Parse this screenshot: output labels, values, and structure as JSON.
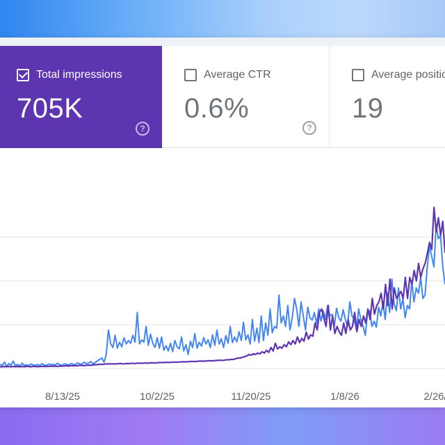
{
  "metrics": [
    {
      "label": "Total impressions",
      "value": "705K",
      "checked": true
    },
    {
      "label": "Average CTR",
      "value": "0.6%",
      "checked": false
    },
    {
      "label": "Average position",
      "value": "19",
      "checked": false
    }
  ],
  "help_glyph": "?",
  "colors": {
    "impressions": "#5e35b1",
    "clicks_line": "#4285f4",
    "grid": "#e0e0e0"
  },
  "chart_data": {
    "type": "line",
    "x_tick_labels": [
      "8/13/25",
      "10/2/25",
      "11/20/25",
      "1/8/26",
      "2/26/"
    ],
    "grid": true,
    "series": [
      {
        "color": "#4285f4",
        "values": [
          12,
          9,
          18,
          6,
          14,
          10,
          21,
          8,
          12,
          7,
          15,
          9,
          11,
          8,
          13,
          10,
          9,
          12,
          8,
          14,
          10,
          9,
          13,
          11,
          12,
          10,
          15,
          11,
          9,
          13,
          12,
          10,
          14,
          12,
          11,
          16,
          13,
          12,
          18,
          14,
          15,
          20,
          13,
          17,
          22,
          26,
          30,
          18,
          40,
          110,
          70,
          60,
          95,
          58,
          75,
          62,
          88,
          70,
          80,
          72,
          95,
          75,
          160,
          70,
          82,
          75,
          120,
          66,
          98,
          72,
          60,
          88,
          58,
          90,
          52,
          65,
          50,
          72,
          48,
          80,
          62,
          56,
          90,
          50,
          68,
          40,
          78,
          60,
          100,
          58,
          75,
          64,
          88,
          70,
          82,
          60,
          96,
          66,
          110,
          70,
          85,
          60,
          94,
          72,
          120,
          74,
          90,
          76,
          105,
          80,
          132,
          82,
          96,
          70,
          140,
          78,
          115,
          74,
          150,
          80,
          130,
          95,
          170,
          102,
          120,
          115,
          210,
          130,
          150,
          120,
          180,
          110,
          145,
          200,
          170,
          120,
          190,
          150,
          110,
          175,
          145,
          138,
          160,
          128,
          170,
          135,
          165,
          140,
          180,
          150,
          155,
          120,
          172,
          145,
          135,
          168,
          140,
          120,
          190,
          150,
          140,
          110,
          170,
          140,
          120,
          95,
          160,
          165,
          120,
          135,
          118,
          175,
          150,
          190,
          140,
          215,
          160,
          255,
          185,
          165,
          230,
          170,
          200,
          145,
          180,
          170,
          250,
          190,
          230,
          215,
          260,
          200,
          210,
          290,
          350,
          320,
          290,
          410,
          370,
          380,
          290,
          240
        ]
      },
      {
        "color": "#5e35b1",
        "values": [
          5,
          5,
          6,
          5,
          6,
          5,
          6,
          5,
          6,
          5,
          6,
          5,
          6,
          6,
          5,
          6,
          6,
          5,
          6,
          6,
          6,
          6,
          6,
          7,
          6,
          7,
          6,
          7,
          7,
          7,
          8,
          7,
          8,
          8,
          8,
          8,
          9,
          9,
          8,
          9,
          10,
          9,
          10,
          11,
          11,
          12,
          12,
          12,
          13,
          13,
          13,
          13,
          13,
          13,
          14,
          14,
          13,
          14,
          14,
          14,
          15,
          14,
          15,
          15,
          15,
          15,
          16,
          15,
          16,
          16,
          16,
          16,
          17,
          17,
          17,
          17,
          18,
          17,
          18,
          18,
          18,
          18,
          19,
          19,
          19,
          19,
          20,
          20,
          20,
          20,
          21,
          21,
          21,
          21,
          22,
          22,
          22,
          22,
          23,
          23,
          24,
          23,
          24,
          25,
          25,
          26,
          26,
          28,
          30,
          30,
          32,
          34,
          36,
          40,
          38,
          42,
          40,
          44,
          42,
          48,
          44,
          52,
          46,
          60,
          50,
          72,
          56,
          62,
          58,
          68,
          62,
          76,
          68,
          80,
          70,
          90,
          74,
          86,
          78,
          104,
          84,
          96,
          92,
          130,
          110,
          160,
          170,
          145,
          120,
          180,
          110,
          150,
          100,
          120,
          105,
          95,
          130,
          100,
          140,
          110,
          120,
          160,
          105,
          140,
          120,
          150,
          130,
          170,
          140,
          200,
          155,
          180,
          190,
          215,
          170,
          240,
          180,
          255,
          170,
          230,
          200,
          210,
          220,
          200,
          260,
          200,
          260,
          240,
          280,
          250,
          300,
          260,
          285,
          300,
          330,
          360,
          340,
          460,
          390,
          430,
          380,
          420,
          330
        ]
      }
    ]
  }
}
